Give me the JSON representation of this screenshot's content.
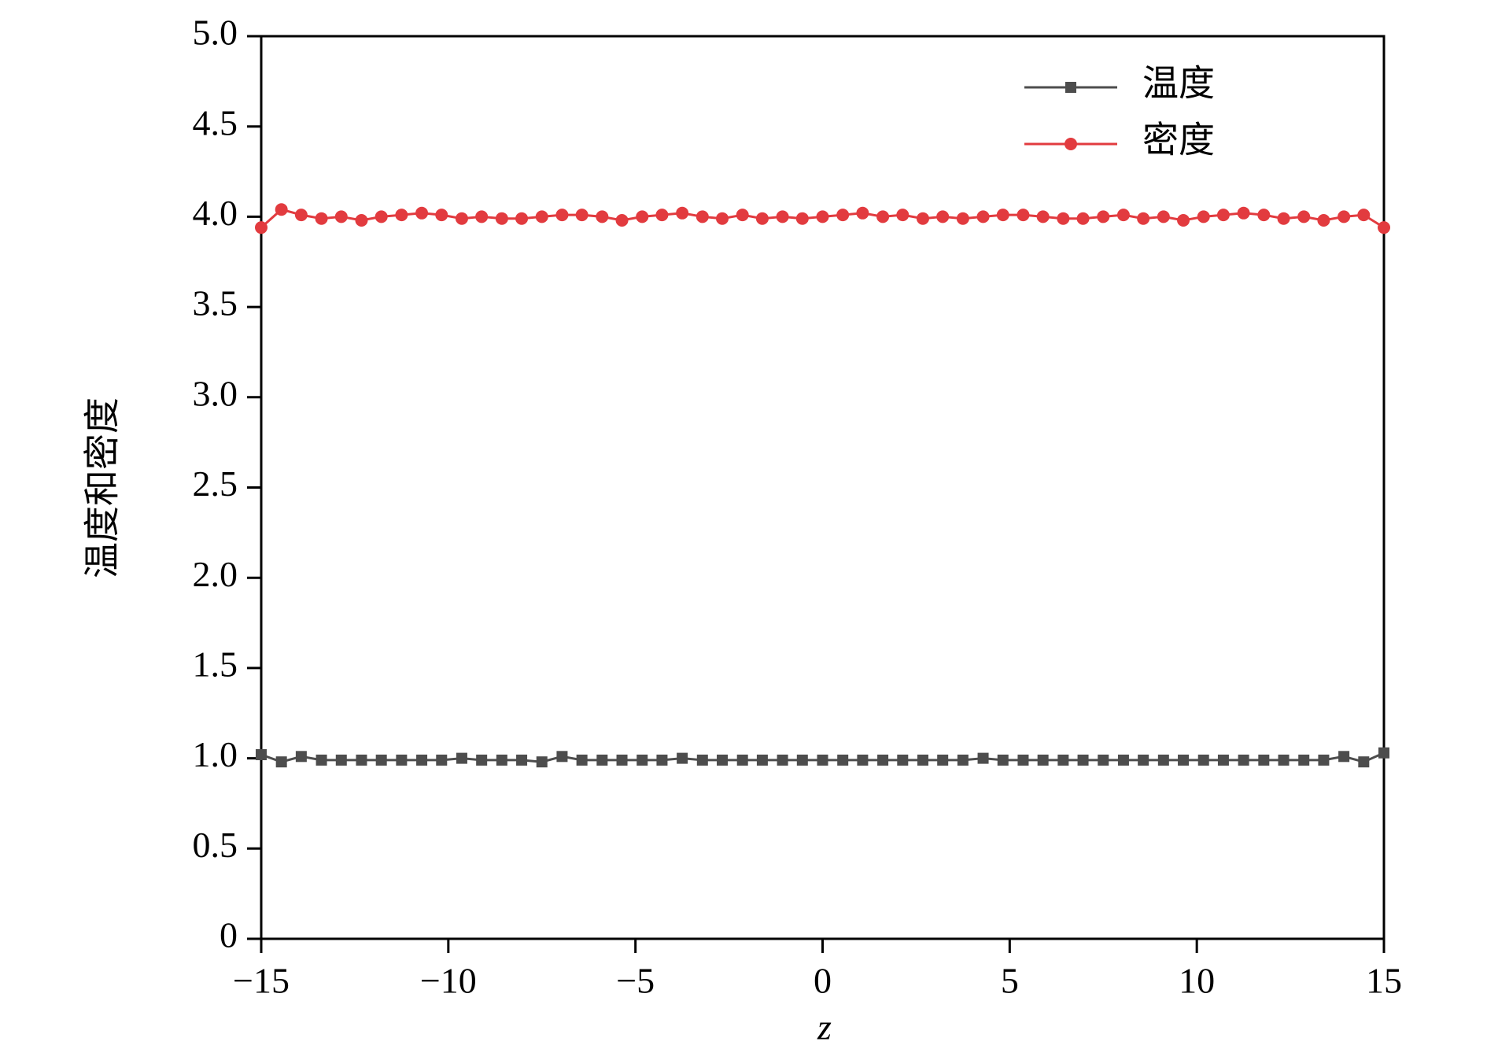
{
  "chart_data": {
    "type": "line",
    "x_label": "z",
    "y_label": "温度和密度",
    "x": [
      -15,
      -14.46,
      -13.93,
      -13.39,
      -12.86,
      -12.32,
      -11.79,
      -11.25,
      -10.71,
      -10.18,
      -9.64,
      -9.11,
      -8.57,
      -8.04,
      -7.5,
      -6.96,
      -6.43,
      -5.89,
      -5.36,
      -4.82,
      -4.29,
      -3.75,
      -3.21,
      -2.68,
      -2.14,
      -1.61,
      -1.07,
      -0.54,
      0,
      0.54,
      1.07,
      1.61,
      2.14,
      2.68,
      3.21,
      3.75,
      4.29,
      4.82,
      5.36,
      5.89,
      6.43,
      6.96,
      7.5,
      8.04,
      8.57,
      9.11,
      9.64,
      10.18,
      10.71,
      11.25,
      11.79,
      12.32,
      12.86,
      13.39,
      13.93,
      14.46,
      15
    ],
    "series": [
      {
        "name": "温度",
        "color": "#4d4d4d",
        "marker": "square",
        "values": [
          1.02,
          0.98,
          1.01,
          0.99,
          0.99,
          0.99,
          0.99,
          0.99,
          0.99,
          0.99,
          1.0,
          0.99,
          0.99,
          0.99,
          0.98,
          1.01,
          0.99,
          0.99,
          0.99,
          0.99,
          0.99,
          1.0,
          0.99,
          0.99,
          0.99,
          0.99,
          0.99,
          0.99,
          0.99,
          0.99,
          0.99,
          0.99,
          0.99,
          0.99,
          0.99,
          0.99,
          1.0,
          0.99,
          0.99,
          0.99,
          0.99,
          0.99,
          0.99,
          0.99,
          0.99,
          0.99,
          0.99,
          0.99,
          0.99,
          0.99,
          0.99,
          0.99,
          0.99,
          0.99,
          1.01,
          0.98,
          1.03
        ]
      },
      {
        "name": "密度",
        "color": "#e23b3f",
        "marker": "circle",
        "values": [
          3.94,
          4.04,
          4.01,
          3.99,
          4.0,
          3.98,
          4.0,
          4.01,
          4.02,
          4.01,
          3.99,
          4.0,
          3.99,
          3.99,
          4.0,
          4.01,
          4.01,
          4.0,
          3.98,
          4.0,
          4.01,
          4.02,
          4.0,
          3.99,
          4.01,
          3.99,
          4.0,
          3.99,
          4.0,
          4.01,
          4.02,
          4.0,
          4.01,
          3.99,
          4.0,
          3.99,
          4.0,
          4.01,
          4.01,
          4.0,
          3.99,
          3.99,
          4.0,
          4.01,
          3.99,
          4.0,
          3.98,
          4.0,
          4.01,
          4.02,
          4.01,
          3.99,
          4.0,
          3.98,
          4.0,
          4.01,
          3.94
        ]
      }
    ],
    "xlim": [
      -15,
      15
    ],
    "xticks": [
      {
        "value": -15,
        "label": "−15"
      },
      {
        "value": -10,
        "label": "−10"
      },
      {
        "value": -5,
        "label": "−5"
      },
      0,
      5,
      10,
      15
    ],
    "ylim": [
      0,
      5
    ],
    "yticks": [
      0,
      0.5,
      {
        "value": 1,
        "label": "1.0"
      },
      1.5,
      {
        "value": 2,
        "label": "2.0"
      },
      2.5,
      {
        "value": 3,
        "label": "3.0"
      },
      3.5,
      {
        "value": 4,
        "label": "4.0"
      },
      4.5,
      {
        "value": 5,
        "label": "5.0"
      }
    ],
    "legend": "upper-right"
  }
}
